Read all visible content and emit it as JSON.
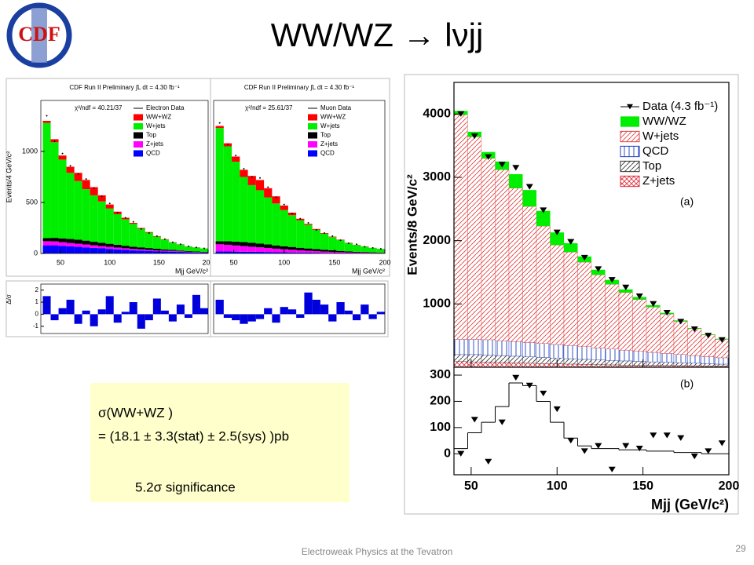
{
  "slide": {
    "title": "WW/WZ → lνjj",
    "logo": "CDF",
    "box": [
      "σ(WW+WZ )",
      "= (18.1 ± 3.3(stat) ± 2.5(sys) )pb",
      "5.2σ significance"
    ],
    "footer": "Electroweak Physics at the Tevatron",
    "page": "29"
  },
  "chart_data": [
    {
      "type": "histogram",
      "title": "CDF Run II Preliminary ∫L dt = 4.30 fb⁻¹",
      "annotation": "χ²/ndf = 40.21/37",
      "xlabel": "Mjj GeV/c²",
      "ylabel": "Events/4 GeV/c²",
      "bins": [
        32,
        40,
        48,
        56,
        64,
        72,
        80,
        88,
        96,
        104,
        112,
        120,
        128,
        136,
        144,
        152,
        160,
        168,
        176,
        184,
        192,
        200
      ],
      "xlim": [
        30,
        200
      ],
      "xticks": [
        50,
        100,
        150,
        200
      ],
      "ylim": [
        0,
        1500
      ],
      "yticks": [
        0,
        500,
        1000
      ],
      "series": [
        {
          "name": "QCD",
          "color": "#0000ff",
          "values": [
            80,
            80,
            75,
            70,
            65,
            60,
            55,
            50,
            45,
            40,
            35,
            30,
            28,
            25,
            22,
            20,
            18,
            15,
            12,
            10,
            8
          ]
        },
        {
          "name": "Z+jets",
          "color": "#ff00ff",
          "values": [
            40,
            38,
            35,
            32,
            30,
            28,
            25,
            22,
            20,
            18,
            16,
            14,
            12,
            10,
            9,
            8,
            7,
            6,
            5,
            4,
            3
          ]
        },
        {
          "name": "Top",
          "color": "#000000",
          "values": [
            30,
            35,
            38,
            40,
            40,
            38,
            35,
            32,
            30,
            28,
            25,
            22,
            20,
            18,
            15,
            12,
            10,
            8,
            6,
            5,
            4
          ]
        },
        {
          "name": "W+jets",
          "color": "#00ee00",
          "values": [
            1130,
            937,
            772,
            648,
            575,
            504,
            455,
            406,
            345,
            299,
            259,
            224,
            182,
            151,
            119,
            96,
            72,
            59,
            45,
            40,
            34
          ]
        },
        {
          "name": "WW+WZ",
          "color": "#ff0000",
          "values": [
            20,
            30,
            40,
            60,
            80,
            90,
            80,
            60,
            40,
            25,
            15,
            10,
            8,
            6,
            5,
            4,
            3,
            2,
            2,
            1,
            1
          ]
        }
      ],
      "data": {
        "name": "Electron Data",
        "values": [
          1350,
          1100,
          980,
          860,
          780,
          730,
          640,
          560,
          490,
          400,
          350,
          310,
          240,
          200,
          170,
          140,
          110,
          90,
          70,
          60,
          50
        ]
      },
      "residuals": {
        "ylabel": "Δ/σ",
        "ylim": [
          -1.6,
          2.5
        ],
        "yticks": [
          -1,
          0,
          1,
          2
        ],
        "color": "#0000dd",
        "values": [
          1.5,
          -0.5,
          0.5,
          1.2,
          -0.8,
          0.3,
          -1,
          0.4,
          1.5,
          -0.7,
          0.2,
          1.0,
          -1.2,
          -0.5,
          1.3,
          0.3,
          -0.6,
          0.8,
          -0.3,
          1.6,
          0.5
        ]
      }
    },
    {
      "type": "histogram",
      "title": "CDF Run II Preliminary ∫L dt = 4.30 fb⁻¹",
      "annotation": "χ²/ndf = 25.61/37",
      "xlabel": "Mjj GeV/c²",
      "bins": [
        32,
        40,
        48,
        56,
        64,
        72,
        80,
        88,
        96,
        104,
        112,
        120,
        128,
        136,
        144,
        152,
        160,
        168,
        176,
        184,
        192,
        200
      ],
      "xlim": [
        30,
        200
      ],
      "xticks": [
        50,
        100,
        150,
        200
      ],
      "ylim": [
        0,
        1500
      ],
      "series": [
        {
          "name": "QCD",
          "color": "#0000ff",
          "values": [
            20,
            20,
            18,
            17,
            16,
            15,
            14,
            12,
            11,
            10,
            9,
            8,
            7,
            6,
            5,
            4,
            4,
            3,
            3,
            2,
            2
          ]
        },
        {
          "name": "Z+jets",
          "color": "#ff00ff",
          "values": [
            70,
            65,
            60,
            55,
            50,
            45,
            40,
            35,
            30,
            26,
            22,
            19,
            16,
            13,
            11,
            9,
            7,
            6,
            5,
            4,
            3
          ]
        },
        {
          "name": "Top",
          "color": "#000000",
          "values": [
            30,
            35,
            38,
            40,
            40,
            38,
            35,
            32,
            30,
            28,
            25,
            22,
            20,
            18,
            15,
            12,
            10,
            8,
            6,
            5,
            4
          ]
        },
        {
          "name": "W+jets",
          "color": "#00ee00",
          "values": [
            1110,
            930,
            784,
            638,
            564,
            522,
            461,
            411,
            354,
            311,
            269,
            231,
            189,
            157,
            129,
            106,
            81,
            66,
            54,
            43,
            35
          ]
        },
        {
          "name": "WW+WZ",
          "color": "#ff0000",
          "values": [
            20,
            30,
            50,
            70,
            90,
            100,
            90,
            70,
            45,
            25,
            15,
            10,
            8,
            6,
            5,
            4,
            3,
            2,
            2,
            1,
            1
          ]
        }
      ],
      "data": {
        "name": "Muon Data",
        "values": [
          1280,
          1070,
          960,
          830,
          750,
          740,
          650,
          550,
          480,
          390,
          340,
          300,
          230,
          200,
          170,
          130,
          100,
          90,
          65,
          55,
          45
        ]
      },
      "residuals": {
        "ylim": [
          -1.6,
          2.5
        ],
        "color": "#0000dd",
        "values": [
          1.2,
          -0.3,
          -0.5,
          -0.8,
          -0.6,
          -0.4,
          0.5,
          -0.7,
          0.6,
          0.4,
          -0.3,
          1.8,
          1.2,
          0.8,
          -0.6,
          1.0,
          0.3,
          -0.5,
          0.8,
          -0.4,
          0.2
        ]
      }
    },
    {
      "type": "histogram",
      "annotation": "(a)",
      "xlabel": "Mjj (GeV/c²)",
      "ylabel": "Events/8 GeV/c²",
      "bins": [
        40,
        48,
        56,
        64,
        72,
        80,
        88,
        96,
        104,
        112,
        120,
        128,
        136,
        144,
        152,
        160,
        168,
        176,
        184,
        192,
        200
      ],
      "xlim": [
        40,
        200
      ],
      "xticks": [
        50,
        100,
        150,
        200
      ],
      "ylim": [
        0,
        4500
      ],
      "yticks": [
        1000,
        2000,
        3000,
        4000
      ],
      "series": [
        {
          "name": "Z+jets",
          "color": "#e03040",
          "hatch": "cross",
          "values": [
            90,
            85,
            80,
            75,
            70,
            65,
            60,
            55,
            50,
            45,
            40,
            38,
            35,
            32,
            30,
            28,
            26,
            24,
            22,
            20
          ]
        },
        {
          "name": "Top",
          "color": "#333333",
          "hatch": "diagonal",
          "values": [
            110,
            115,
            115,
            110,
            105,
            100,
            95,
            90,
            85,
            80,
            75,
            70,
            65,
            60,
            55,
            50,
            45,
            40,
            35,
            30
          ]
        },
        {
          "name": "QCD",
          "color": "#2040c0",
          "hatch": "vertical",
          "values": [
            240,
            240,
            240,
            235,
            230,
            225,
            220,
            215,
            210,
            200,
            190,
            180,
            170,
            160,
            150,
            140,
            130,
            120,
            110,
            100
          ]
        },
        {
          "name": "W+jets",
          "color": "#e04040",
          "hatch": "diagonal",
          "values": [
            3550,
            3200,
            2865,
            2700,
            2425,
            2150,
            1855,
            1570,
            1475,
            1335,
            1155,
            1022,
            910,
            818,
            715,
            622,
            524,
            426,
            343,
            290
          ]
        },
        {
          "name": "WW/WZ",
          "color": "#00ee00",
          "values": [
            60,
            80,
            100,
            130,
            220,
            260,
            240,
            200,
            140,
            90,
            80,
            70,
            50,
            40,
            30,
            20,
            15,
            10,
            10,
            10
          ]
        }
      ],
      "data": {
        "name": "Data (4.3 fb⁻¹)",
        "values": [
          4000,
          3650,
          3320,
          3200,
          3150,
          2850,
          2480,
          2130,
          1980,
          1730,
          1550,
          1380,
          1260,
          1120,
          1000,
          860,
          720,
          600,
          500,
          430
        ]
      },
      "panel_b": {
        "annotation": "(b)",
        "ylim": [
          -80,
          330
        ],
        "yticks": [
          0,
          100,
          200,
          300
        ],
        "data": [
          0,
          130,
          -30,
          120,
          290,
          260,
          230,
          170,
          50,
          10,
          30,
          -60,
          30,
          20,
          70,
          70,
          60,
          -10,
          10,
          40
        ],
        "fit": [
          20,
          80,
          120,
          180,
          270,
          260,
          200,
          120,
          60,
          30,
          20,
          20,
          15,
          15,
          10,
          10,
          5,
          5,
          0,
          0
        ]
      }
    }
  ]
}
